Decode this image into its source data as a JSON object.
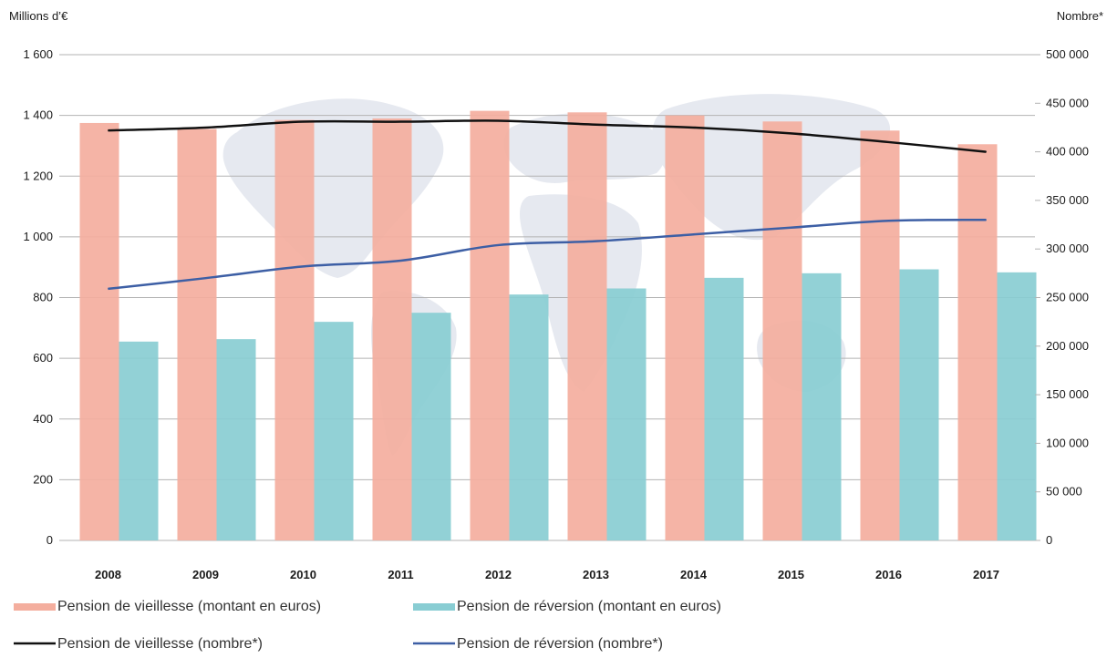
{
  "chart_data": {
    "type": "bar",
    "left_axis_unit": "Millions d’€",
    "right_axis_unit": "Nombre*",
    "categories": [
      "2008",
      "2009",
      "2010",
      "2011",
      "2012",
      "2013",
      "2014",
      "2015",
      "2016",
      "2017"
    ],
    "left_ylim": [
      0,
      1600
    ],
    "left_ticks": [
      0,
      200,
      400,
      600,
      800,
      1000,
      1200,
      1400,
      1600
    ],
    "left_tick_labels": [
      "0",
      "200",
      "400",
      "600",
      "800",
      "1 000",
      "1 200",
      "1 400",
      "1 600"
    ],
    "right_ylim": [
      0,
      500000
    ],
    "right_ticks": [
      0,
      50000,
      100000,
      150000,
      200000,
      250000,
      300000,
      350000,
      400000,
      450000,
      500000
    ],
    "right_tick_labels": [
      "0",
      "50 000",
      "100 000",
      "150 000",
      "200 000",
      "250 000",
      "300 000",
      "350 000",
      "400 000",
      "450 000",
      "500 000"
    ],
    "grid": true,
    "legend_position": "bottom",
    "bar_series": [
      {
        "name": "Pension de vieillesse (montant en euros)",
        "color": "#f4ae9e",
        "axis": "left",
        "values": [
          1375,
          1355,
          1385,
          1390,
          1415,
          1410,
          1400,
          1380,
          1350,
          1305
        ]
      },
      {
        "name": "Pension de réversion (montant en euros)",
        "color": "#89cdd3",
        "axis": "left",
        "values": [
          655,
          663,
          720,
          750,
          810,
          830,
          865,
          880,
          893,
          883
        ]
      }
    ],
    "line_series": [
      {
        "name": "Pension de vieillesse (nombre*)",
        "color": "#111111",
        "axis": "right",
        "values": [
          422000,
          425000,
          431000,
          431000,
          432000,
          428000,
          425000,
          419000,
          410000,
          400000
        ]
      },
      {
        "name": "Pension de réversion (nombre*)",
        "color": "#3d5fa5",
        "axis": "right",
        "values": [
          259000,
          270000,
          282000,
          288000,
          304000,
          308000,
          315000,
          322000,
          329000,
          330000
        ]
      }
    ]
  }
}
